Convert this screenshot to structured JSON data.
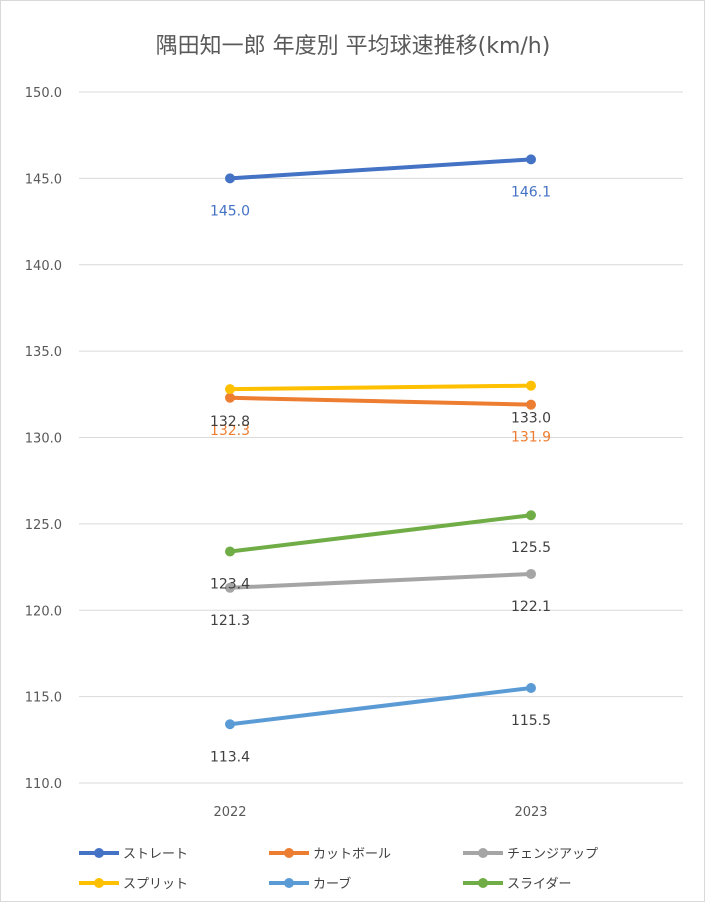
{
  "chart_data": {
    "type": "line",
    "title": "隅田知一郎 年度別 平均球速推移(km/h)",
    "categories": [
      "2022",
      "2023"
    ],
    "ylim": [
      110,
      150
    ],
    "ytick_labels": [
      "150.0",
      "145.0",
      "140.0",
      "135.0",
      "130.0",
      "125.0",
      "120.0",
      "115.0",
      "110.0"
    ],
    "grid": true,
    "legend_position": "bottom",
    "series": [
      {
        "name": "ストレート",
        "values": [
          145.0,
          146.1
        ],
        "labels": [
          "145.0",
          "146.1"
        ],
        "color": "#4472c4",
        "label_color": "#4472c4"
      },
      {
        "name": "カットボール",
        "values": [
          132.3,
          131.9
        ],
        "labels": [
          "132.3",
          "131.9"
        ],
        "color": "#ed7d31",
        "label_color": "#ed7d31"
      },
      {
        "name": "チェンジアップ",
        "values": [
          121.3,
          122.1
        ],
        "labels": [
          "121.3",
          "122.1"
        ],
        "color": "#a5a5a5",
        "label_color": "#404040"
      },
      {
        "name": "スプリット",
        "values": [
          132.8,
          133.0
        ],
        "labels": [
          "132.8",
          "133.0"
        ],
        "color": "#ffc000",
        "label_color": "#404040"
      },
      {
        "name": "カーブ",
        "values": [
          113.4,
          115.5
        ],
        "labels": [
          "113.4",
          "115.5"
        ],
        "color": "#5b9bd5",
        "label_color": "#404040"
      },
      {
        "name": "スライダー",
        "values": [
          123.4,
          125.5
        ],
        "labels": [
          "123.4",
          "125.5"
        ],
        "color": "#70ad47",
        "label_color": "#404040"
      }
    ]
  }
}
